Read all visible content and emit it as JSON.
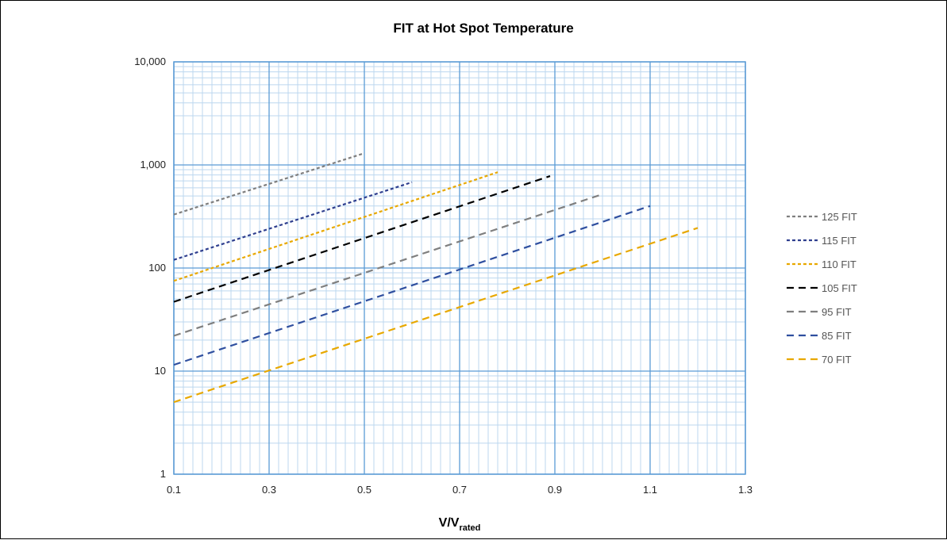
{
  "chart_data": {
    "type": "line",
    "title": "FIT at Hot Spot Temperature",
    "xlabel_main": "V/V",
    "xlabel_sub": "rated",
    "ylabel": "",
    "xlim": [
      0.1,
      1.3
    ],
    "ylim": [
      1,
      10000
    ],
    "yscale": "log",
    "x_ticks": [
      "0.1",
      "0.3",
      "0.5",
      "0.7",
      "0.9",
      "1.1",
      "1.3"
    ],
    "y_ticks": [
      "1",
      "10",
      "100",
      "1,000",
      "10,000"
    ],
    "grid": true,
    "legend_position": "right",
    "series": [
      {
        "name": "125 FIT",
        "color": "#7f7f7f",
        "dash": "short",
        "x": [
          0.1,
          0.5
        ],
        "y": [
          330,
          1300
        ]
      },
      {
        "name": "115 FIT",
        "color": "#2f3f8f",
        "dash": "short",
        "x": [
          0.1,
          0.6
        ],
        "y": [
          120,
          680
        ]
      },
      {
        "name": "110 FIT",
        "color": "#e8a800",
        "dash": "short",
        "x": [
          0.1,
          0.78
        ],
        "y": [
          75,
          850
        ]
      },
      {
        "name": "105 FIT",
        "color": "#000000",
        "dash": "long",
        "x": [
          0.1,
          0.89
        ],
        "y": [
          47,
          780
        ]
      },
      {
        "name": "95 FIT",
        "color": "#7f7f7f",
        "dash": "long",
        "x": [
          0.1,
          1.0
        ],
        "y": [
          22,
          520
        ]
      },
      {
        "name": "85 FIT",
        "color": "#2f4f9f",
        "dash": "long",
        "x": [
          0.1,
          1.1
        ],
        "y": [
          11.5,
          400
        ]
      },
      {
        "name": "70 FIT",
        "color": "#e8a800",
        "dash": "long",
        "x": [
          0.1,
          1.2
        ],
        "y": [
          5,
          245
        ]
      }
    ]
  }
}
